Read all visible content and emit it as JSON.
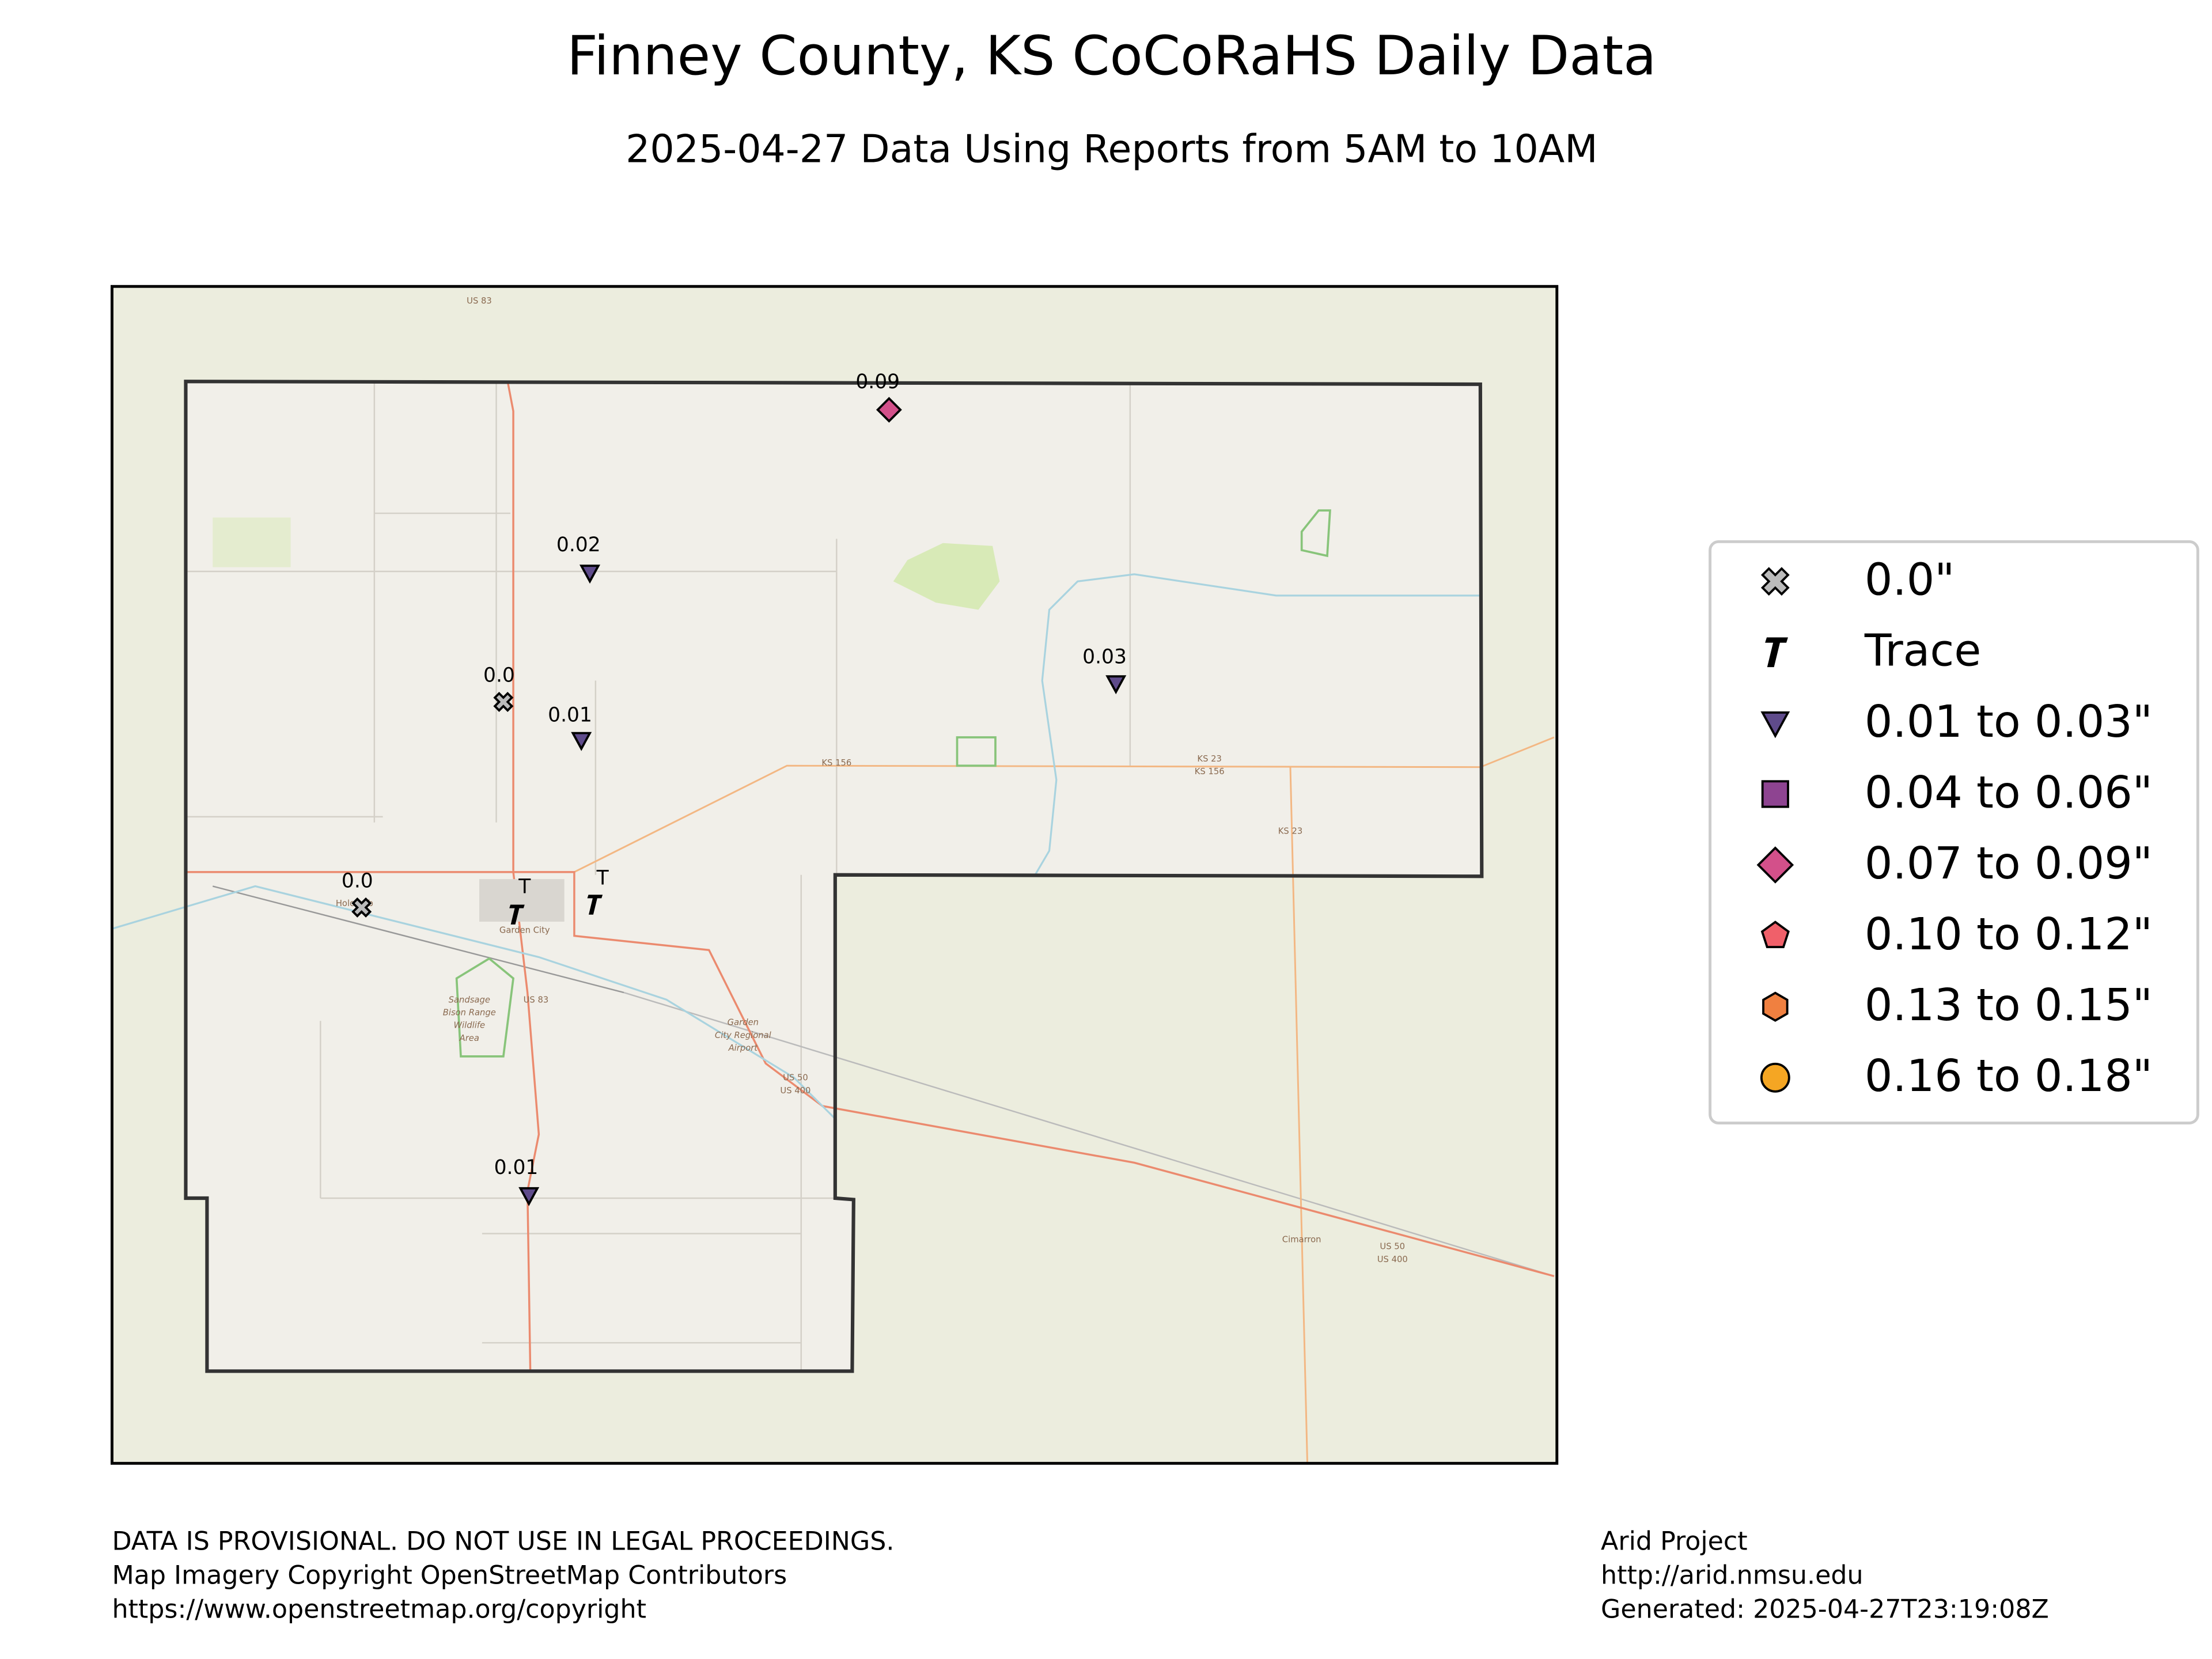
{
  "header": {
    "title": "Finney County, KS CoCoRaHS Daily Data",
    "subtitle": "2025-04-27 Data Using Reports from 5AM to 10AM"
  },
  "stations": [
    {
      "label": "0.09"
    },
    {
      "label": "0.02"
    },
    {
      "label": "0.0"
    },
    {
      "label": "0.01"
    },
    {
      "label": "0.03"
    },
    {
      "label": "0.0"
    },
    {
      "label": "T"
    },
    {
      "label": "T"
    },
    {
      "label": "0.01"
    }
  ],
  "legend": {
    "entries": [
      "0.0\"",
      "Trace",
      "0.01 to 0.03\"",
      "0.04 to 0.06\"",
      "0.07 to 0.09\"",
      "0.10 to 0.12\"",
      "0.13 to 0.15\"",
      "0.16 to 0.18\""
    ]
  },
  "map_labels": [
    "US 83",
    "KS 156",
    "KS 23",
    "KS 156",
    "KS 23",
    "Garden City",
    "Holcomb",
    "US 83",
    "Sandsage",
    "Bison Range",
    "Wildlife",
    "Area",
    "Garden",
    "City Regional",
    "Airport",
    "US 50",
    "US 400",
    "Cimarron",
    "US 50",
    "US 400"
  ],
  "footer": {
    "left": [
      "DATA IS PROVISIONAL. DO NOT USE IN LEGAL PROCEEDINGS.",
      "Map Imagery Copyright OpenStreetMap Contributors",
      "https://www.openstreetmap.org/copyright"
    ],
    "right": [
      "Arid Project",
      "http://arid.nmsu.edu",
      "Generated: 2025-04-27T23:19:08Z"
    ]
  }
}
